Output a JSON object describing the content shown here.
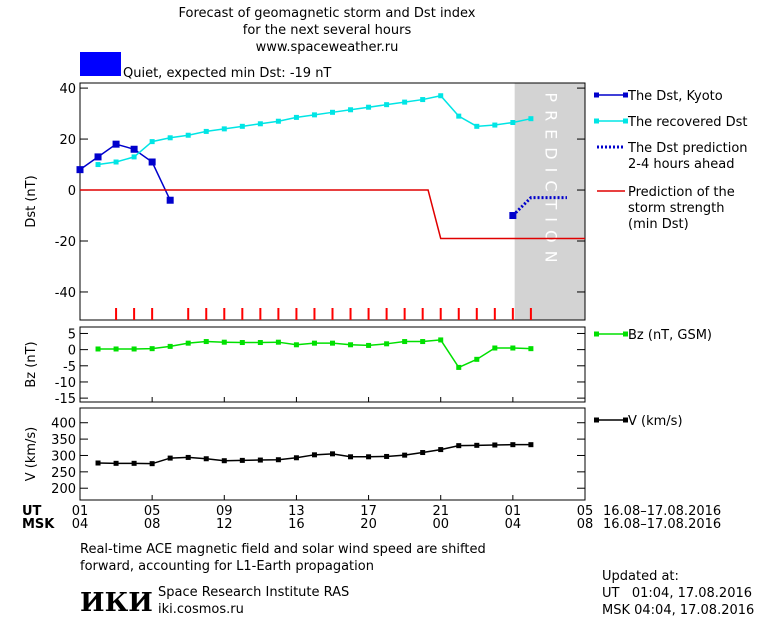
{
  "title_lines": [
    "Forecast of geomagnetic storm and Dst index",
    "for the next several hours",
    "www.spaceweather.ru"
  ],
  "status": {
    "text": "Quiet, expected min Dst: -19 nT",
    "color": "#0000ff"
  },
  "chart_data": [
    {
      "type": "line",
      "ylabel": "Dst (nT)",
      "xlim": [
        1,
        29
      ],
      "ylim": [
        -51,
        42
      ],
      "yticks": [
        -40,
        -20,
        0,
        20,
        40
      ],
      "prediction_zone": {
        "label": "PREDICTION",
        "xlim": [
          25.1,
          29
        ],
        "color": "#d3d3d3"
      },
      "storm_ticks": {
        "color": "#ff0000",
        "x": [
          3,
          4,
          5,
          7,
          8,
          9,
          10,
          11,
          12,
          13,
          14,
          15,
          16,
          17,
          18,
          19,
          20,
          21,
          22,
          23,
          24,
          25,
          26
        ]
      },
      "series": [
        {
          "name": [
            "The Dst, Kyoto"
          ],
          "color": "#0000cc",
          "marker": "square",
          "dash": false,
          "x": [
            1,
            2,
            3,
            4,
            5,
            6,
            25
          ],
          "values": [
            8,
            13,
            18,
            16,
            11,
            -4,
            -10
          ]
        },
        {
          "name": [
            "The recovered Dst"
          ],
          "color": "#00e5e5",
          "marker": "small",
          "dash": false,
          "x": [
            2,
            3,
            4,
            5,
            6,
            7,
            8,
            9,
            10,
            11,
            12,
            13,
            14,
            15,
            16,
            17,
            18,
            19,
            20,
            21,
            22,
            23,
            24,
            25,
            26
          ],
          "values": [
            10,
            11,
            13,
            19,
            20.5,
            21.5,
            23,
            24,
            25,
            26,
            27,
            28.5,
            29.5,
            30.5,
            31.5,
            32.5,
            33.5,
            34.5,
            35.5,
            37,
            29,
            25,
            25.5,
            26.5,
            28
          ]
        },
        {
          "name": [
            "The Dst prediction",
            "2-4 hours ahead"
          ],
          "color": "#0000cc",
          "marker": null,
          "dash": true,
          "x": [
            25,
            26,
            27,
            28
          ],
          "values": [
            -10,
            -3,
            -3,
            -3
          ]
        },
        {
          "name": [
            "Prediction of the",
            "storm strength",
            "(min Dst)"
          ],
          "color": "#e00000",
          "marker": null,
          "dash": false,
          "x": [
            1,
            20.3,
            21,
            29
          ],
          "values": [
            0,
            0,
            -19,
            -19
          ]
        }
      ]
    },
    {
      "type": "line",
      "ylabel": "Bz (nT)",
      "xlim": [
        1,
        29
      ],
      "ylim": [
        -16.2,
        7
      ],
      "yticks": [
        -15,
        -10,
        -5,
        0,
        5
      ],
      "series": [
        {
          "name": [
            "Bz (nT, GSM)"
          ],
          "color": "#00e000",
          "marker": "small",
          "dash": false,
          "x": [
            2,
            3,
            4,
            5,
            6,
            7,
            8,
            9,
            10,
            11,
            12,
            13,
            14,
            15,
            16,
            17,
            18,
            19,
            20,
            21,
            22,
            23,
            24,
            25,
            26
          ],
          "values": [
            0.2,
            0.2,
            0.2,
            0.3,
            1,
            2,
            2.5,
            2.3,
            2.2,
            2.2,
            2.3,
            1.5,
            2,
            2,
            1.5,
            1.3,
            1.8,
            2.5,
            2.5,
            3,
            -5.5,
            -3,
            0.5,
            0.5,
            0.3
          ]
        }
      ]
    },
    {
      "type": "line",
      "ylabel": "V (km/s)",
      "xlim": [
        1,
        29
      ],
      "ylim": [
        164,
        445
      ],
      "yticks": [
        200,
        250,
        300,
        350,
        400
      ],
      "xlabel_rows": [
        "UT",
        "MSK"
      ],
      "date_range": [
        "16.08–17.08.2016",
        "16.08–17.08.2016"
      ],
      "xticks": [
        {
          "value": 1,
          "label": "01"
        },
        {
          "value": 5,
          "label": "05"
        },
        {
          "value": 9,
          "label": "09"
        },
        13,
        17,
        21,
        {
          "value": 25,
          "label": "01"
        },
        {
          "value": 29,
          "label": "05"
        }
      ],
      "xticks_msk": [
        {
          "value": 1,
          "label": "04"
        },
        {
          "value": 5,
          "label": "08"
        },
        {
          "value": 9,
          "label": "12"
        },
        {
          "value": 13,
          "label": "16"
        },
        {
          "value": 17,
          "label": "20"
        },
        {
          "value": 21,
          "label": "00"
        },
        {
          "value": 25,
          "label": "04"
        },
        {
          "value": 29,
          "label": "08"
        }
      ],
      "series": [
        {
          "name": [
            "V (km/s)"
          ],
          "color": "#000000",
          "marker": "small",
          "dash": false,
          "x": [
            2,
            3,
            4,
            5,
            6,
            7,
            8,
            9,
            10,
            11,
            12,
            13,
            14,
            15,
            16,
            17,
            18,
            19,
            20,
            21,
            22,
            23,
            24,
            25,
            26
          ],
          "values": [
            277,
            276,
            276,
            275,
            292,
            294,
            290,
            284,
            285,
            286,
            287,
            293,
            302,
            305,
            296,
            296,
            297,
            301,
            309,
            318,
            330,
            331,
            332,
            333,
            333
          ]
        }
      ]
    }
  ],
  "footer": {
    "note_lines": [
      "Real-time ACE magnetic field and solar wind speed are shifted",
      "forward, accounting for L1-Earth propagation"
    ],
    "logo": "ИКИ",
    "institute": "Space Research Institute RAS",
    "site": "iki.cosmos.ru",
    "updated_lines": [
      "Updated at:",
      "UT   01:04, 17.08.2016",
      "MSK 04:04, 17.08.2016"
    ]
  }
}
